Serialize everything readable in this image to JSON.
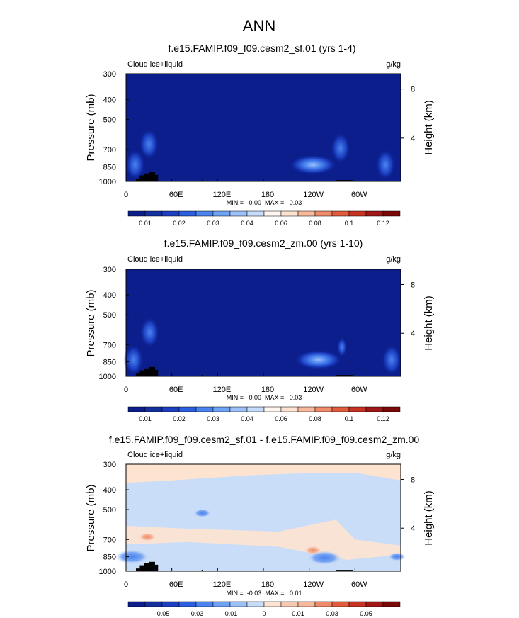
{
  "figure": {
    "title": "ANN"
  },
  "colors": {
    "field": "#0b1e8c",
    "orography": "#000000",
    "blue_shades": [
      "#1c3fc2",
      "#2a5fe0",
      "#4a84f0",
      "#6ea3f6",
      "#9cc0f8",
      "#c5dbfa"
    ],
    "warm_shades": [
      "#fde3d0",
      "#f7b89c",
      "#ef8a6a",
      "#e35a3c",
      "#c83222",
      "#a11616",
      "#7a0808"
    ],
    "diff_base": "#c9ddf8",
    "diff_warm": "#fde3d0",
    "diff_cold": "#7aa6f2"
  },
  "chart_data": [
    {
      "type": "heatmap",
      "title": "f.e15.FAMIP.f09_f09.cesm2_sf.01 (yrs 1-4)",
      "variable_label": "Cloud ice+liquid",
      "units": "g/kg",
      "ylabel": "Pressure (mb)",
      "ylabel_right": "Height (km)",
      "x_ticks": [
        "0",
        "60E",
        "120E",
        "180",
        "120W",
        "60W"
      ],
      "x_tick_values": [
        0,
        60,
        120,
        180,
        240,
        300
      ],
      "xlim": [
        0,
        360
      ],
      "y_ticks": [
        300,
        400,
        500,
        700,
        850,
        1000
      ],
      "y_ticks_right": [
        8,
        4
      ],
      "ylim": [
        1000,
        300
      ],
      "y_scale": "log",
      "minmax": "MIN =   0.00  MAX =   0.03",
      "colorbar_labels": [
        "0.01",
        "0.02",
        "0.03",
        "0.04",
        "0.06",
        "0.08",
        "0.1",
        "0.12"
      ],
      "features": [
        {
          "lon": 30,
          "p": 660,
          "value": 0.02
        },
        {
          "lon": 12,
          "p": 830,
          "value": 0.015
        },
        {
          "lon": 245,
          "p": 830,
          "value": 0.03
        },
        {
          "lon": 281,
          "p": 690,
          "value": 0.015
        },
        {
          "lon": 340,
          "p": 830,
          "value": 0.015
        }
      ]
    },
    {
      "type": "heatmap",
      "title": "f.e15.FAMIP.f09_f09.cesm2_zm.00 (yrs 1-10)",
      "variable_label": "Cloud ice+liquid",
      "units": "g/kg",
      "ylabel": "Pressure (mb)",
      "ylabel_right": "Height (km)",
      "x_ticks": [
        "0",
        "60E",
        "120E",
        "180",
        "120W",
        "60W"
      ],
      "x_tick_values": [
        0,
        60,
        120,
        180,
        240,
        300
      ],
      "xlim": [
        0,
        360
      ],
      "y_ticks": [
        300,
        400,
        500,
        700,
        850,
        1000
      ],
      "y_ticks_right": [
        8,
        4
      ],
      "ylim": [
        1000,
        300
      ],
      "y_scale": "log",
      "minmax": "MIN =   0.00  MAX =   0.03",
      "colorbar_labels": [
        "0.01",
        "0.02",
        "0.03",
        "0.04",
        "0.06",
        "0.08",
        "0.1",
        "0.12"
      ],
      "features": [
        {
          "lon": 31,
          "p": 610,
          "value": 0.02
        },
        {
          "lon": 10,
          "p": 830,
          "value": 0.015
        },
        {
          "lon": 252,
          "p": 830,
          "value": 0.03
        },
        {
          "lon": 283,
          "p": 720,
          "value": 0.01
        },
        {
          "lon": 348,
          "p": 830,
          "value": 0.015
        }
      ]
    },
    {
      "type": "heatmap",
      "title": "f.e15.FAMIP.f09_f09.cesm2_sf.01 - f.e15.FAMIP.f09_f09.cesm2_zm.00",
      "variable_label": "Cloud ice+liquid",
      "units": "g/kg",
      "ylabel": "Pressure (mb)",
      "ylabel_right": "Height (km)",
      "x_ticks": [
        "0",
        "60E",
        "120E",
        "180",
        "120W",
        "60W"
      ],
      "x_tick_values": [
        0,
        60,
        120,
        180,
        240,
        300
      ],
      "xlim": [
        0,
        360
      ],
      "y_ticks": [
        300,
        400,
        500,
        700,
        850,
        1000
      ],
      "y_ticks_right": [
        8,
        4
      ],
      "ylim": [
        1000,
        300
      ],
      "y_scale": "log",
      "minmax": "MIN =  -0.03  MAX =   0.01",
      "colorbar_labels": [
        "-0.05",
        "-0.03",
        "-0.01",
        "0",
        "0.01",
        "0.03",
        "0.05"
      ],
      "features": [
        {
          "lon": 28,
          "p": 680,
          "value": 0.005
        },
        {
          "lon": 8,
          "p": 850,
          "value": -0.01
        },
        {
          "lon": 100,
          "p": 520,
          "value": -0.005
        },
        {
          "lon": 245,
          "p": 790,
          "value": 0.005
        },
        {
          "lon": 260,
          "p": 860,
          "value": -0.01
        },
        {
          "lon": 355,
          "p": 850,
          "value": -0.005
        }
      ]
    }
  ]
}
